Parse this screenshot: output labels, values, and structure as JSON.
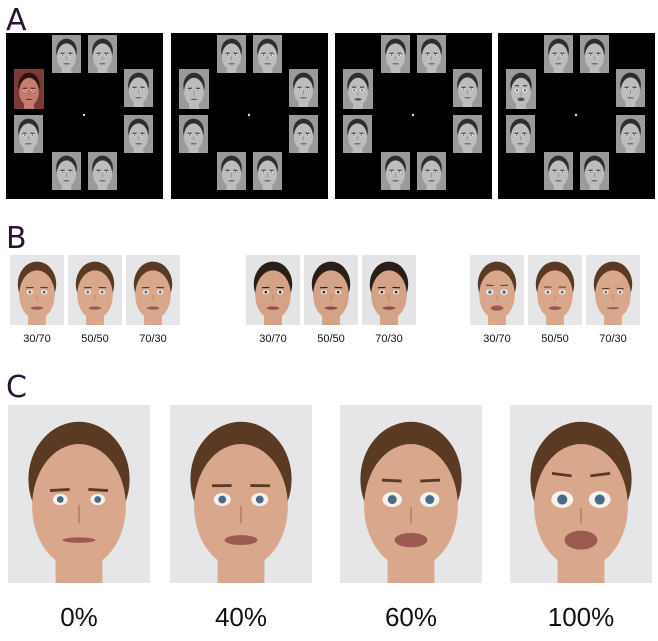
{
  "panel_a": {
    "label": "A"
  },
  "panel_b": {
    "label": "B",
    "groups": [
      {
        "labels": [
          "30/70",
          "50/50",
          "70/30"
        ]
      },
      {
        "labels": [
          "30/70",
          "50/50",
          "70/30"
        ]
      },
      {
        "labels": [
          "30/70",
          "50/50",
          "70/30"
        ]
      }
    ]
  },
  "panel_c": {
    "label": "C",
    "labels": [
      "0%",
      "40%",
      "60%",
      "100%"
    ]
  }
}
